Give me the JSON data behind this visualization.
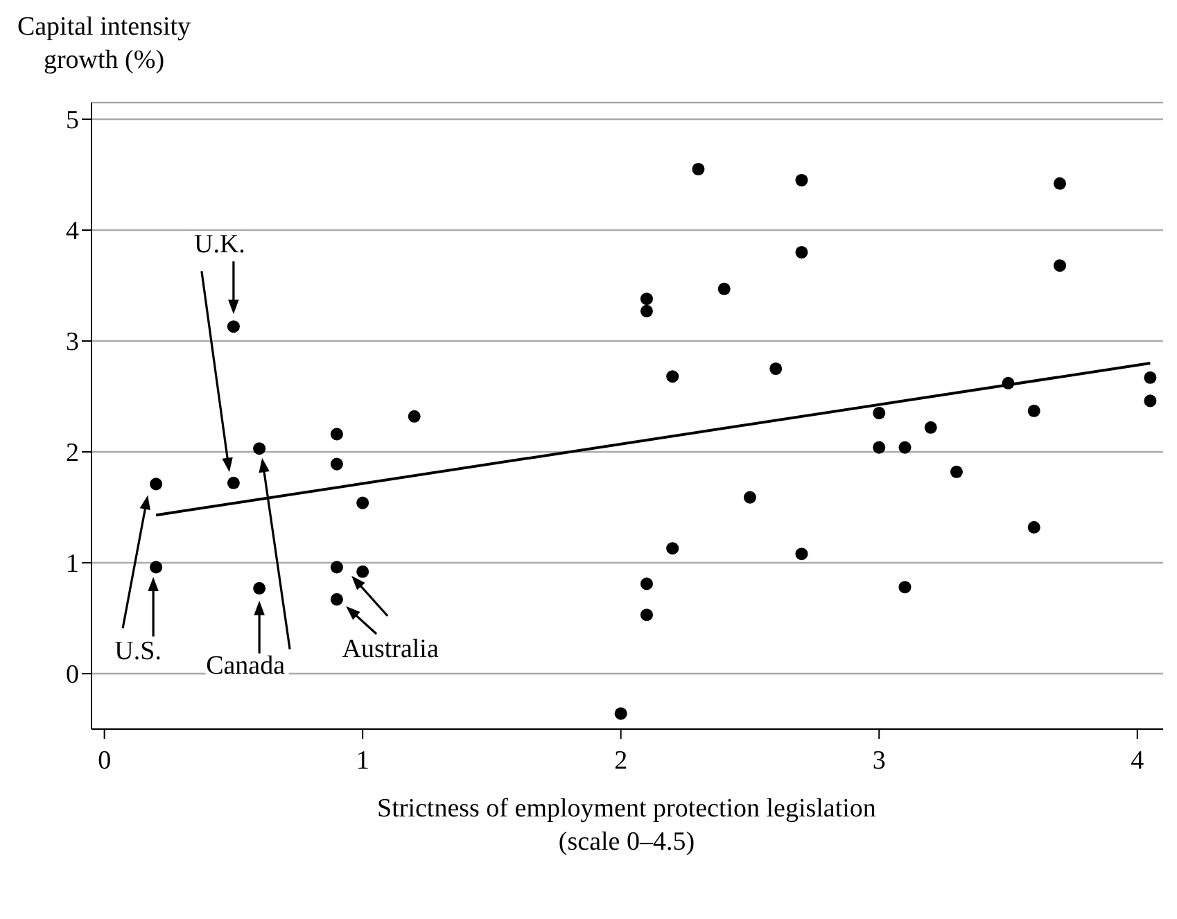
{
  "chart_data": {
    "type": "scatter",
    "ylabel": "Capital intensity growth (%)",
    "xlabel": "Strictness of employment protection legislation (scale 0–4.5)",
    "xlim": [
      -0.05,
      4.1
    ],
    "xticks": [
      0,
      1,
      2,
      3,
      4
    ],
    "ylim": [
      -0.5,
      5.15
    ],
    "yticks": [
      0,
      1,
      2,
      3,
      4,
      5
    ],
    "grid": "y",
    "marker": "circle",
    "series": [
      {
        "color": "#000000",
        "x": [
          0.2,
          0.2,
          0.5,
          0.5,
          0.6,
          0.6,
          0.9,
          0.9,
          1.0,
          0.9,
          1.0,
          0.9,
          1.2,
          2.0,
          2.1,
          2.1,
          2.1,
          2.1,
          2.3,
          2.2,
          2.2,
          2.4,
          2.5,
          2.6,
          2.7,
          2.7,
          2.7,
          3.0,
          3.0,
          3.1,
          3.1,
          3.2,
          3.3,
          3.5,
          3.6,
          3.6,
          3.7,
          3.7,
          4.05,
          4.05
        ],
        "values": [
          1.71,
          0.96,
          3.13,
          1.72,
          2.03,
          0.77,
          2.16,
          1.89,
          1.54,
          0.96,
          0.92,
          0.67,
          2.32,
          -0.36,
          3.38,
          3.27,
          0.81,
          0.53,
          4.55,
          2.68,
          1.13,
          3.47,
          1.59,
          2.75,
          4.45,
          3.8,
          1.08,
          2.35,
          2.04,
          2.04,
          0.78,
          2.22,
          1.82,
          2.62,
          2.37,
          1.32,
          4.42,
          3.68,
          2.67,
          2.46
        ]
      },
      {
        "type": "line",
        "marker": "none",
        "color": "#000000",
        "x": [
          0.2,
          4.05
        ],
        "values": [
          1.43,
          2.8
        ]
      }
    ],
    "annotations": [
      {
        "text": "U.S.",
        "x": 0.2,
        "y": 0.96
      },
      {
        "text": "U.K.",
        "x": 0.5,
        "y": 3.13
      },
      {
        "text": "Canada",
        "x": 0.6,
        "y": 0.77
      },
      {
        "text": "Australia",
        "x": 1.0,
        "y": 0.92
      }
    ]
  }
}
